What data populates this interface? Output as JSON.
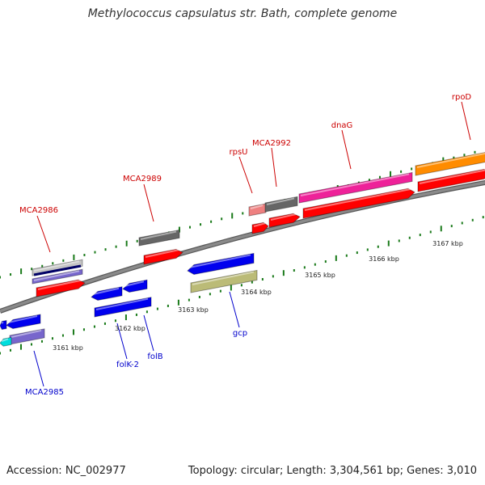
{
  "title": "Methylococcus capsulatus str. Bath, complete genome",
  "accession_text": "Accession: NC_002977",
  "summary_text": "Topology: circular; Length: 3,304,561 bp; Genes: 3,010",
  "colors": {
    "backbone": "#8a8a8a",
    "tick_dots": "#1a7a1a",
    "label_top": "#cc0000",
    "label_bottom": "#0000cc",
    "red": "#ff0000",
    "dark_gray": "#666666",
    "light_gray": "#c4c4c4",
    "pink": "#ee2299",
    "salmon": "#ee8080",
    "orange": "#ff8c00",
    "blue": "#0000ee",
    "purple": "#7766cc",
    "olive": "#bbbb77",
    "cyan": "#00dddd",
    "navy": "#000066"
  },
  "scale_labels": [
    "3161 kbp",
    "3162 kbp",
    "3163 kbp",
    "3164 kbp",
    "3165 kbp",
    "3166 kbp",
    "3167 kbp"
  ],
  "top_labels": [
    "MCA2986",
    "MCA2989",
    "rpsU",
    "MCA2992",
    "dnaG",
    "rpoD"
  ],
  "bottom_labels": [
    "MCA2985",
    "folK-2",
    "folB",
    "gcp"
  ]
}
